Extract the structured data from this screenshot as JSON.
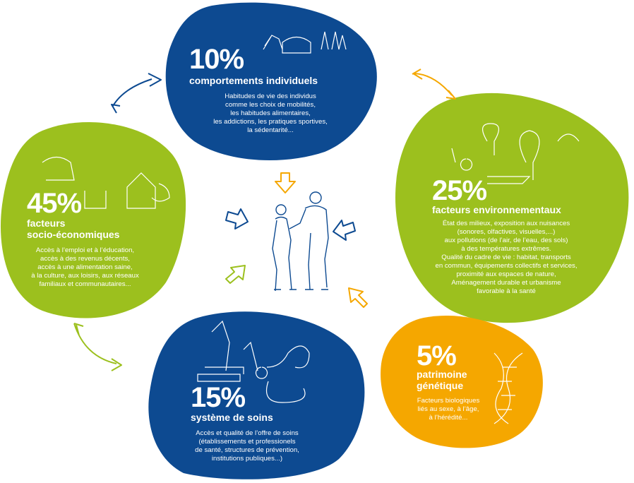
{
  "colors": {
    "blue": "#0d4a91",
    "green": "#9cc01e",
    "orange": "#f5a700",
    "white": "#ffffff"
  },
  "blocks": {
    "individual": {
      "percent": "10%",
      "title": "comportements individuels",
      "lines": [
        "Habitudes de vie des individus",
        "comme les choix de mobilités,",
        "les habitudes alimentaires,",
        "les addictions, les pratiques sportives,",
        "la sédentarité..."
      ],
      "icon": "people-walking-car-illustration"
    },
    "environment": {
      "percent": "25%",
      "title": "facteurs environnementaux",
      "lines": [
        "État des milieux, exposition aux nuisances",
        "(sonores, olfactives, visuelles,...)",
        "aux pollutions (de l’air, de l’eau, des sols)",
        "à des températures extrêmes.",
        "Qualité du cadre de vie : habitat, transports",
        "en commun, équipements collectifs et services,",
        "proximité aux espaces de nature,",
        "Aménagement durable et urbanisme",
        "favorable à la santé"
      ],
      "icon": "park-trees-illustration"
    },
    "socio": {
      "percent": "45%",
      "title_lines": [
        "facteurs",
        "socio-économiques"
      ],
      "lines": [
        "Accès à l’emploi et à l’éducation,",
        "accès à des revenus décents,",
        "accès à une alimentation saine,",
        "à la culture, aux loisirs, aux réseaux",
        "familiaux et communautaires..."
      ],
      "icon": "family-home-illustration"
    },
    "care": {
      "percent": "15%",
      "title": "système de soins",
      "lines": [
        "Accès et qualité de l’offre de soins",
        "(établissements et professionels",
        "de santé, structures de prévention,",
        "institutions publiques...)"
      ],
      "icon": "stethoscope-books-illustration"
    },
    "genetic": {
      "percent": "5%",
      "title_lines": [
        "patrimoine",
        "génétique"
      ],
      "lines": [
        "Facteurs biologiques",
        "liés au sexe, à l’âge,",
        "à l’hérédité..."
      ],
      "icon": "dna-helix-illustration"
    }
  },
  "center_icon": "two-people-illustration"
}
